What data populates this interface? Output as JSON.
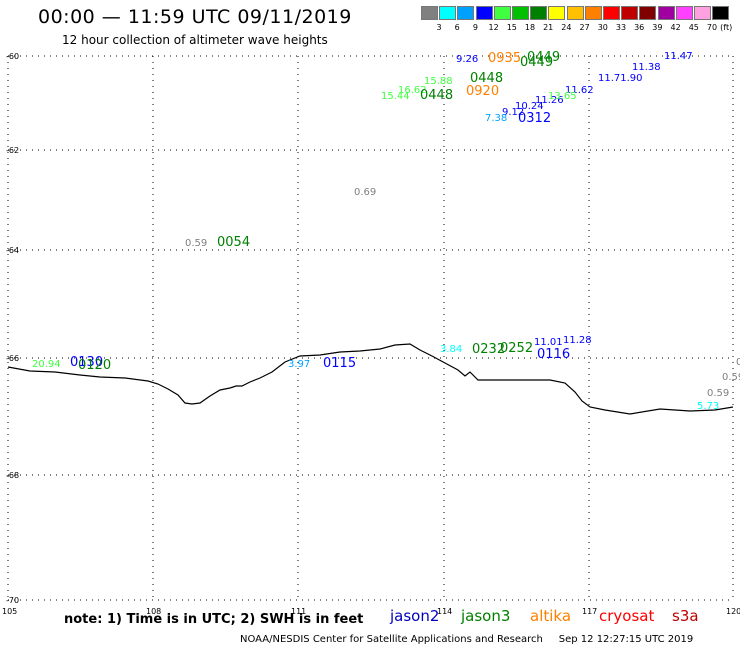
{
  "header": {
    "title": "00:00 — 11:59 UTC 09/11/2019",
    "subtitle": "12 hour collection of altimeter wave heights"
  },
  "color_scale": {
    "unit": "(ft)",
    "steps": [
      {
        "label": "3",
        "color": "#808080"
      },
      {
        "label": "6",
        "color": "#00ffff"
      },
      {
        "label": "9",
        "color": "#00a0ff"
      },
      {
        "label": "12",
        "color": "#0000ff"
      },
      {
        "label": "15",
        "color": "#40ff40"
      },
      {
        "label": "18",
        "color": "#00c000"
      },
      {
        "label": "21",
        "color": "#008000"
      },
      {
        "label": "24",
        "color": "#ffff00"
      },
      {
        "label": "27",
        "color": "#ffc000"
      },
      {
        "label": "30",
        "color": "#ff8000"
      },
      {
        "label": "33",
        "color": "#ff0000"
      },
      {
        "label": "36",
        "color": "#c00000"
      },
      {
        "label": "39",
        "color": "#800000"
      },
      {
        "label": "42",
        "color": "#a000a0"
      },
      {
        "label": "45",
        "color": "#ff40ff"
      },
      {
        "label": "70",
        "color": "#ffa0e0"
      },
      {
        "label": "",
        "color": "#000000"
      }
    ]
  },
  "axes": {
    "lat_labels": [
      "-60",
      "-62",
      "-64",
      "-66",
      "-68",
      "-70"
    ],
    "lon_labels": [
      "105",
      "108",
      "111",
      "114",
      "117",
      "120"
    ]
  },
  "observations": [
    {
      "text": "9.26",
      "color": "#0000ff"
    },
    {
      "text": "0935",
      "color": "#ff8000"
    },
    {
      "text": "0449",
      "color": "#008000"
    },
    {
      "text": "0449",
      "color": "#008000"
    },
    {
      "text": "15.88",
      "color": "#40ff40"
    },
    {
      "text": "0448",
      "color": "#008000"
    },
    {
      "text": "16.62",
      "color": "#40ff40"
    },
    {
      "text": "15.44",
      "color": "#40ff40"
    },
    {
      "text": "0448",
      "color": "#008000"
    },
    {
      "text": "0920",
      "color": "#ff8000"
    },
    {
      "text": "11.47",
      "color": "#0000ff"
    },
    {
      "text": "11.38",
      "color": "#0000ff"
    },
    {
      "text": "11.71.90",
      "color": "#0000ff"
    },
    {
      "text": "11.62",
      "color": "#0000ff"
    },
    {
      "text": "11.26",
      "color": "#0000ff"
    },
    {
      "text": "10.24",
      "color": "#0000ff"
    },
    {
      "text": "9.12",
      "color": "#0000ff"
    },
    {
      "text": "7.38",
      "color": "#00a0ff"
    },
    {
      "text": "0312",
      "color": "#0000ff"
    },
    {
      "text": "13.65",
      "color": "#40ff40"
    },
    {
      "text": "0.69",
      "color": "#808080"
    },
    {
      "text": "0.59",
      "color": "#808080"
    },
    {
      "text": "0054",
      "color": "#008000"
    },
    {
      "text": "20.94",
      "color": "#40ff40"
    },
    {
      "text": "0130",
      "color": "#0000ff"
    },
    {
      "text": "0120",
      "color": "#008000"
    },
    {
      "text": "3.97",
      "color": "#00a0ff"
    },
    {
      "text": "0115",
      "color": "#0000ff"
    },
    {
      "text": "3.84",
      "color": "#00ffff"
    },
    {
      "text": "0232",
      "color": "#008000"
    },
    {
      "text": "0252",
      "color": "#008000"
    },
    {
      "text": "11.01",
      "color": "#0000ff"
    },
    {
      "text": "11.28",
      "color": "#0000ff"
    },
    {
      "text": "0116",
      "color": "#0000ff"
    },
    {
      "text": "0.59",
      "color": "#808080"
    },
    {
      "text": "0.59",
      "color": "#808080"
    },
    {
      "text": "5.73",
      "color": "#00ffff"
    }
  ],
  "footer": {
    "note": "note: 1) Time is in UTC; 2) SWH is in feet",
    "satellites": [
      {
        "name": "jason2",
        "color": "#0000c0"
      },
      {
        "name": "jason3",
        "color": "#008000"
      },
      {
        "name": "altika",
        "color": "#ff8000"
      },
      {
        "name": "cryosat",
        "color": "#ff0000"
      },
      {
        "name": "s3a",
        "color": "#c00000"
      }
    ],
    "credit": "NOAA/NESDIS Center for Satellite Applications and Research",
    "timestamp": "Sep 12 12:27:15 UTC 2019"
  }
}
